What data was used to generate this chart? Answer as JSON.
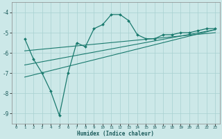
{
  "xlabel": "Humidex (Indice chaleur)",
  "bg_color": "#cce8e8",
  "line_color": "#1a7a6e",
  "xlim": [
    -0.5,
    23.5
  ],
  "ylim": [
    -9.5,
    -3.5
  ],
  "yticks": [
    -9,
    -8,
    -7,
    -6,
    -5,
    -4
  ],
  "xticks": [
    0,
    1,
    2,
    3,
    4,
    5,
    6,
    7,
    8,
    9,
    10,
    11,
    12,
    13,
    14,
    15,
    16,
    17,
    18,
    19,
    20,
    21,
    22,
    23
  ],
  "series1_x": [
    1,
    2,
    3,
    4,
    5,
    6,
    7,
    8,
    9,
    10,
    11,
    12,
    13,
    14,
    15,
    16,
    17,
    18,
    19,
    20,
    21,
    22,
    23
  ],
  "series1_y": [
    -5.3,
    -6.3,
    -7.0,
    -7.9,
    -9.1,
    -7.0,
    -5.5,
    -5.7,
    -4.8,
    -4.6,
    -4.1,
    -4.1,
    -4.4,
    -5.1,
    -5.3,
    -5.3,
    -5.1,
    -5.1,
    -5.0,
    -5.0,
    -4.9,
    -4.8,
    -4.8
  ],
  "series2_x": [
    1,
    23
  ],
  "series2_y": [
    -5.9,
    -5.0
  ],
  "series3_x": [
    1,
    23
  ],
  "series3_y": [
    -6.6,
    -4.85
  ],
  "series4_x": [
    1,
    23
  ],
  "series4_y": [
    -7.2,
    -4.85
  ]
}
